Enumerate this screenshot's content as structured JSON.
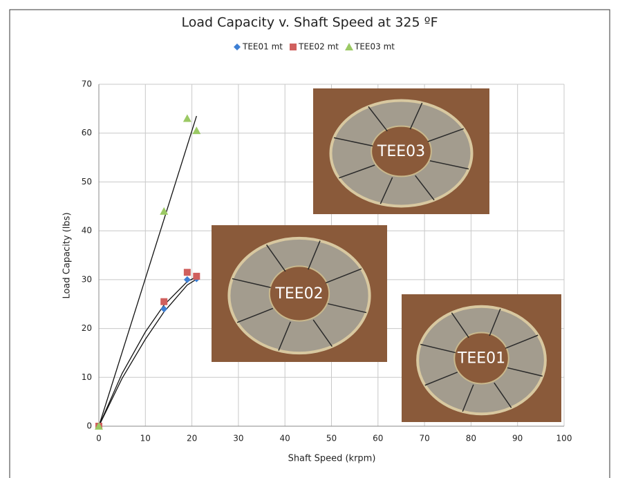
{
  "chart_data": {
    "type": "scatter",
    "title": "Load Capacity v. Shaft Speed at 325 ºF",
    "x_label": "Shaft Speed (krpm)",
    "y_label": "Load Capacity (lbs)",
    "xlim": [
      0,
      100
    ],
    "xticks": [
      0,
      10,
      20,
      30,
      40,
      50,
      60,
      70,
      80,
      90,
      100
    ],
    "ylim": [
      0,
      70
    ],
    "yticks": [
      0,
      10,
      20,
      30,
      40,
      50,
      60,
      70
    ],
    "grid": true,
    "legend": "top",
    "series": [
      {
        "name": "TEE01 mt",
        "color": "#3d7fd4",
        "marker": "diamond",
        "x": [
          0,
          14,
          19,
          21
        ],
        "values": [
          0,
          24,
          30,
          30.2
        ]
      },
      {
        "name": "TEE02 mt",
        "color": "#d0605e",
        "marker": "square",
        "x": [
          0,
          14,
          19,
          21
        ],
        "values": [
          0,
          25.5,
          31.5,
          30.7
        ]
      },
      {
        "name": "TEE03 mt",
        "color": "#9bc964",
        "marker": "triangle",
        "x": [
          0,
          14,
          19,
          21
        ],
        "values": [
          0,
          44,
          63,
          60.5
        ]
      }
    ],
    "trend_lines": [
      {
        "color": "#111111",
        "x": [
          0,
          5,
          10,
          14,
          19,
          21
        ],
        "values": [
          0,
          9.8,
          17.8,
          23.4,
          28.9,
          30.1
        ]
      },
      {
        "color": "#111111",
        "x": [
          0,
          5,
          10,
          14,
          19,
          21
        ],
        "values": [
          0,
          10.8,
          19.3,
          24.8,
          29.6,
          30.6
        ]
      },
      {
        "color": "#111111",
        "x": [
          0,
          21
        ],
        "values": [
          0,
          63.5
        ]
      }
    ],
    "insets": [
      {
        "label": "TEE03"
      },
      {
        "label": "TEE02"
      },
      {
        "label": "TEE01"
      }
    ]
  }
}
